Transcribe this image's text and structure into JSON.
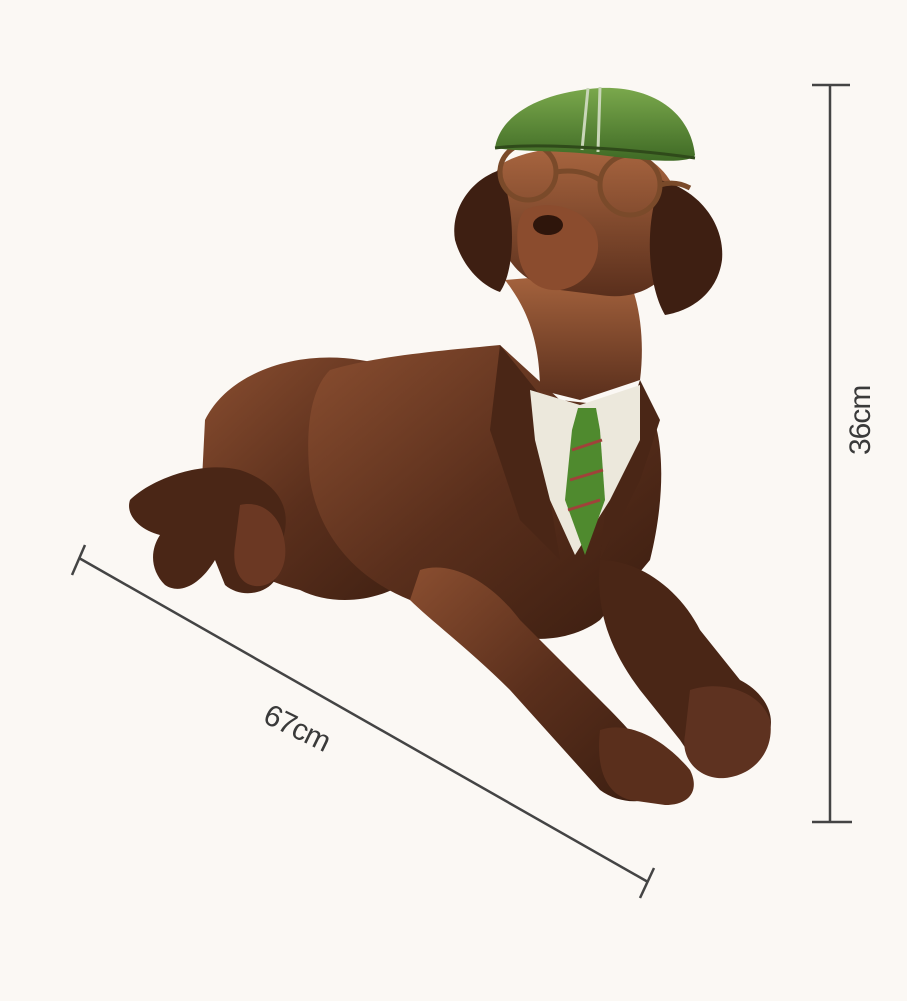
{
  "dimensions": {
    "width_label": "67cm",
    "height_label": "36cm"
  },
  "product": {
    "subject": "dog-statue",
    "colors": {
      "background": "#fbf8f4",
      "bronze": "#5a2f1c",
      "bronze_highlight": "#9a5a38",
      "cap_green": "#5d8a3a",
      "shirt": "#ece8dc",
      "tie_green": "#4f8a2e",
      "dimension_line": "#444444"
    }
  }
}
